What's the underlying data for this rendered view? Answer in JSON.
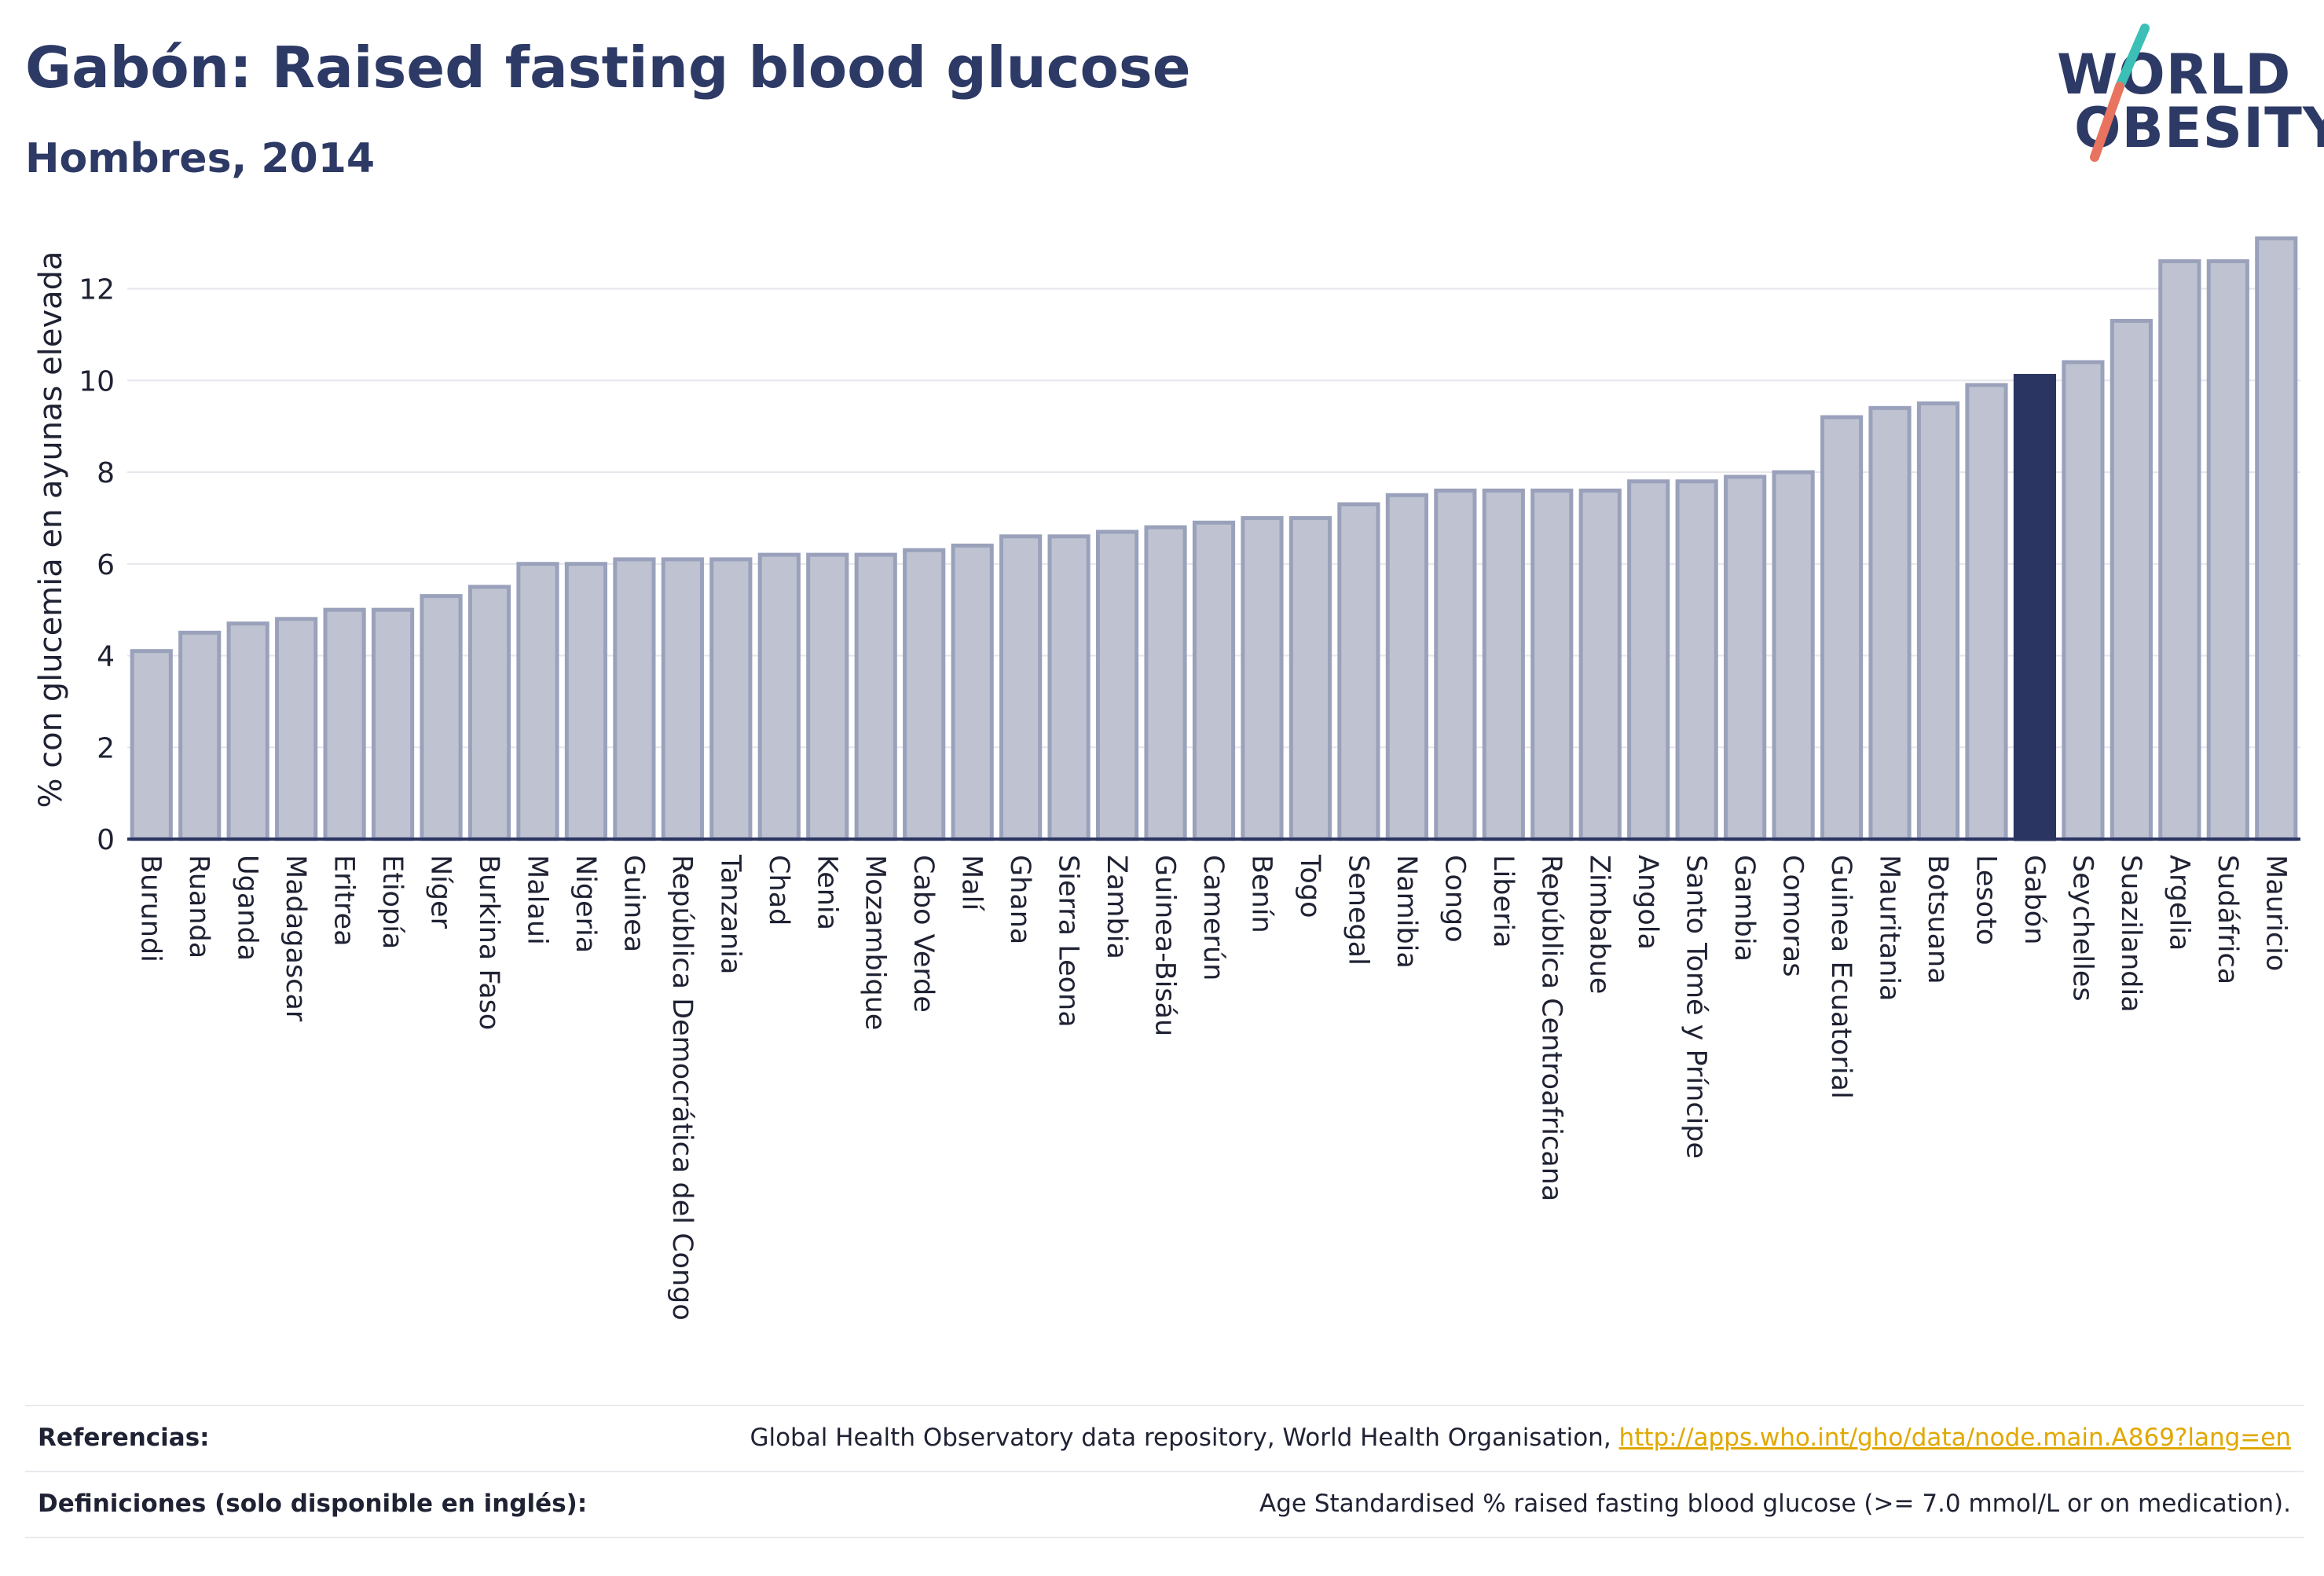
{
  "header": {
    "title": "Gabón: Raised fasting blood glucose",
    "subtitle": "Hombres, 2014"
  },
  "logo": {
    "line1": "WORLD",
    "line2": "OBESITY",
    "slash_colors": [
      "#3bbfb6",
      "#e8735f"
    ],
    "text_color": "#2d3a66"
  },
  "colors": {
    "bar_fill": "#bfc3d1",
    "bar_stroke": "#9aa1bb",
    "highlight_fill": "#2b3561",
    "axis": "#2b3561",
    "grid": "#e6e6ec"
  },
  "chart_data": {
    "type": "bar",
    "title": "Gabón: Raised fasting blood glucose",
    "subtitle": "Hombres, 2014",
    "xlabel": "",
    "ylabel": "% con glucemia en ayunas elevada",
    "ylim": [
      0,
      13.5
    ],
    "yticks": [
      0,
      2,
      4,
      6,
      8,
      10,
      12
    ],
    "grid": true,
    "highlight": "Gabón",
    "categories": [
      "Burundi",
      "Ruanda",
      "Uganda",
      "Madagascar",
      "Eritrea",
      "Etiopía",
      "Níger",
      "Burkina Faso",
      "Malaui",
      "Nigeria",
      "Guinea",
      "República Democrática del Congo",
      "Tanzania",
      "Chad",
      "Kenia",
      "Mozambique",
      "Cabo Verde",
      "Malí",
      "Ghana",
      "Sierra Leona",
      "Zambia",
      "Guinea-Bisáu",
      "Camerún",
      "Benín",
      "Togo",
      "Senegal",
      "Namibia",
      "Congo",
      "Liberia",
      "República Centroafricana",
      "Zimbabue",
      "Angola",
      "Santo Tomé y Príncipe",
      "Gambia",
      "Comoras",
      "Guinea Ecuatorial",
      "Mauritania",
      "Botsuana",
      "Lesoto",
      "Gabón",
      "Seychelles",
      "Suazilandia",
      "Argelia",
      "Sudáfrica",
      "Mauricio"
    ],
    "values": [
      4.1,
      4.5,
      4.7,
      4.8,
      5.0,
      5.0,
      5.3,
      5.5,
      6.0,
      6.0,
      6.1,
      6.1,
      6.1,
      6.2,
      6.2,
      6.2,
      6.3,
      6.4,
      6.6,
      6.6,
      6.7,
      6.8,
      6.9,
      7.0,
      7.0,
      7.3,
      7.5,
      7.6,
      7.6,
      7.6,
      7.6,
      7.8,
      7.8,
      7.9,
      8.0,
      9.2,
      9.4,
      9.5,
      9.9,
      10.1,
      10.4,
      11.3,
      12.6,
      12.6,
      13.1
    ]
  },
  "references": {
    "refs_label": "Referencias:",
    "refs_text": "Global Health Observatory data repository, World Health Organisation, ",
    "refs_link": "http://apps.who.int/gho/data/node.main.A869?lang=en",
    "defs_label": "Definiciones (solo disponible en inglés):",
    "defs_text": "Age Standardised % raised fasting blood glucose (>= 7.0 mmol/L or on medication)."
  }
}
